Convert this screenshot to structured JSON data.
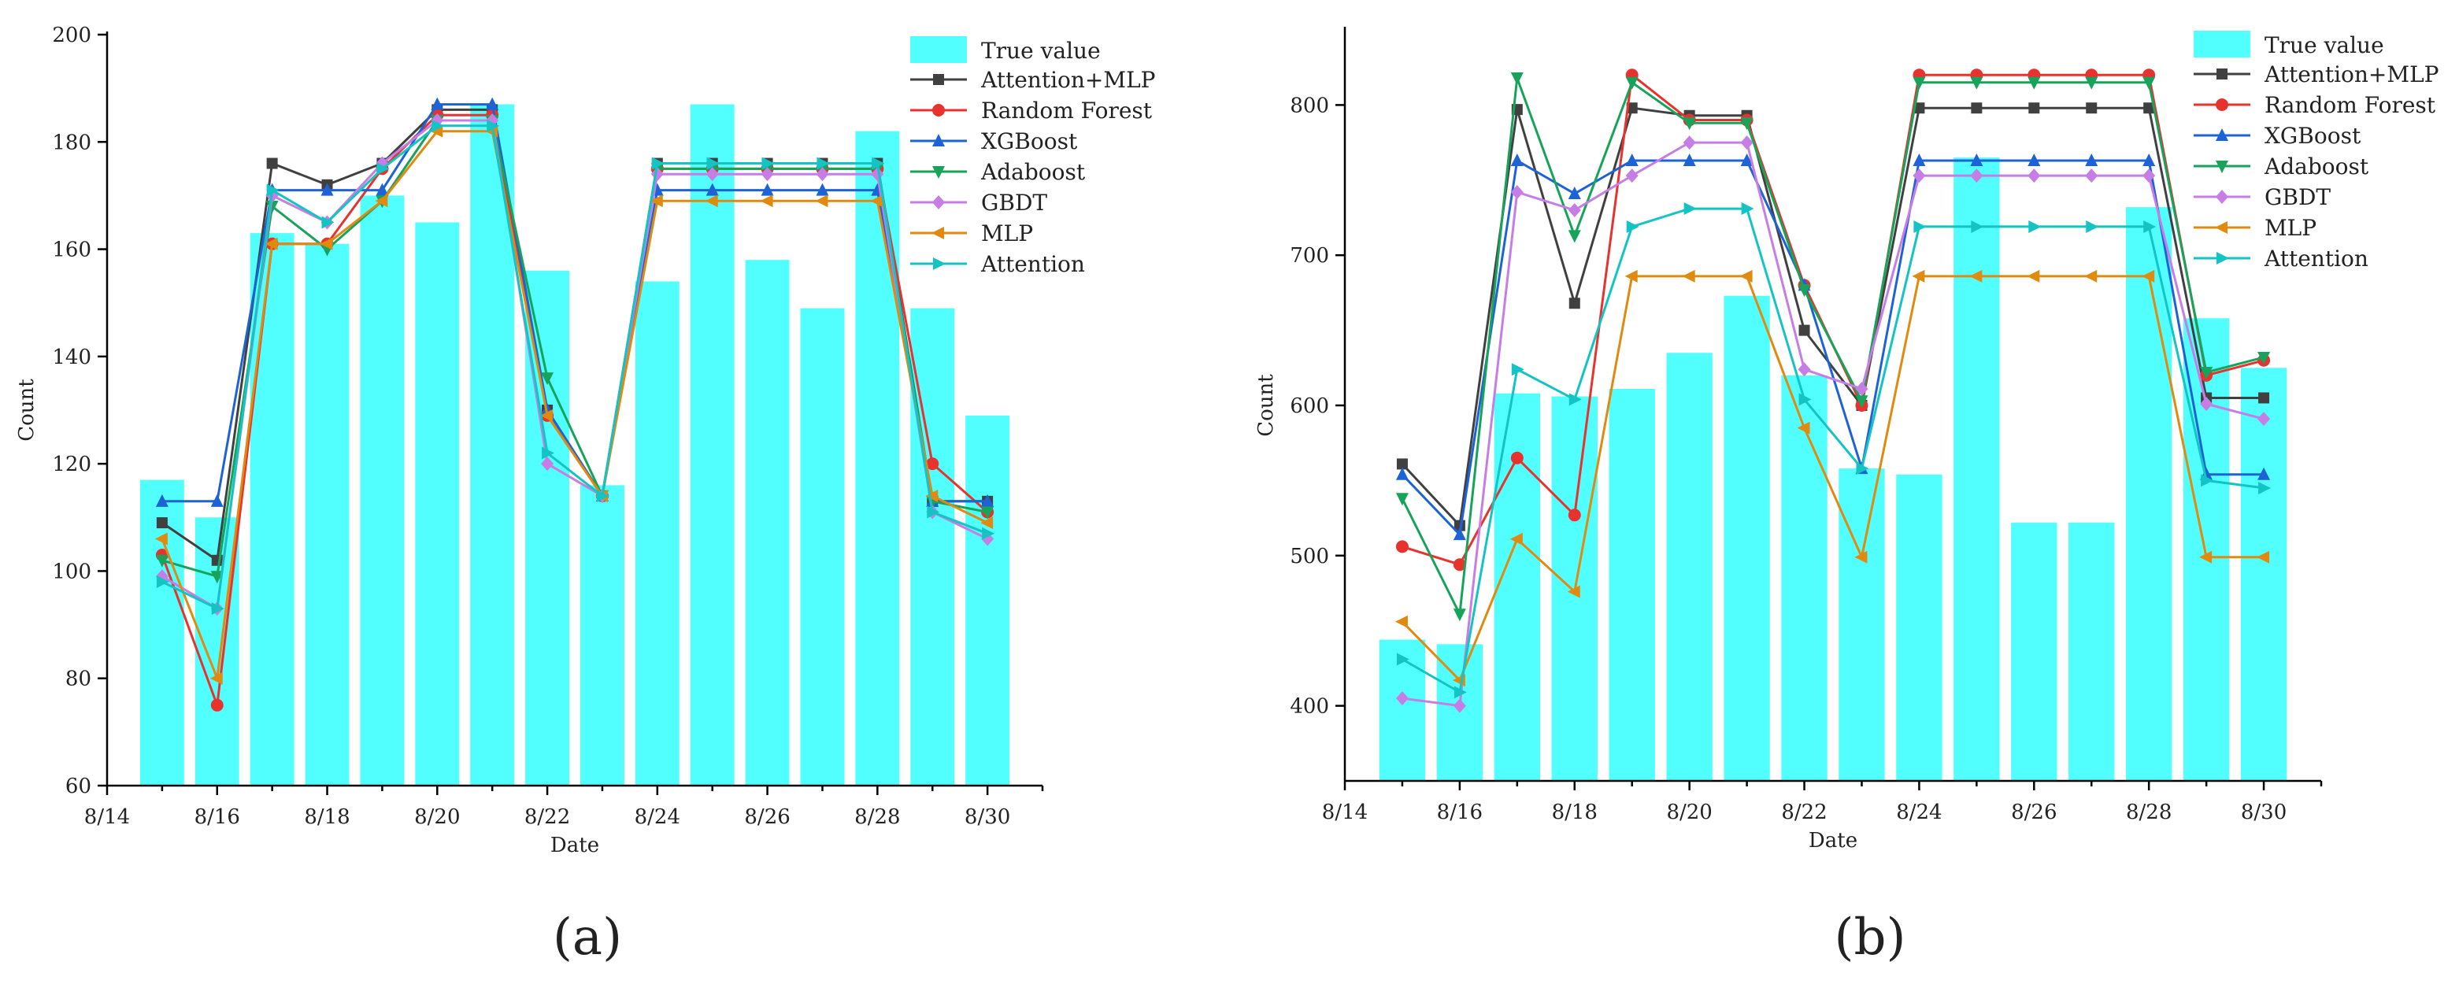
{
  "figure": {
    "panel_labels": [
      "(a)",
      "(b)"
    ]
  },
  "chart_data": [
    {
      "type": "bar+line",
      "panel": "(a)",
      "xlabel": "Date",
      "ylabel": "Count",
      "ylim": [
        60,
        200
      ],
      "xlim": [
        14,
        31
      ],
      "yticks": [
        60,
        80,
        100,
        120,
        140,
        160,
        180,
        200
      ],
      "xticks": [
        14,
        16,
        18,
        20,
        22,
        24,
        26,
        28,
        30
      ],
      "xtick_labels": [
        "8/14",
        "8/16",
        "8/18",
        "8/20",
        "8/22",
        "8/24",
        "8/26",
        "8/28",
        "8/30"
      ],
      "x": [
        15,
        16,
        17,
        18,
        19,
        20,
        21,
        22,
        23,
        24,
        25,
        26,
        27,
        28,
        29,
        30
      ],
      "legend_position": "top-right",
      "bars": {
        "name": "True value",
        "color": "#33ffff",
        "values": [
          117,
          110,
          163,
          161,
          170,
          165,
          187,
          156,
          116,
          154,
          187,
          158,
          149,
          182,
          149,
          129
        ]
      },
      "series": [
        {
          "name": "Attention+MLP",
          "color": "#404040",
          "marker": "square",
          "values": [
            109,
            102,
            176,
            172,
            176,
            186,
            186,
            130,
            114,
            176,
            176,
            176,
            176,
            176,
            113,
            113
          ]
        },
        {
          "name": "Random Forest",
          "color": "#e8322e",
          "marker": "circle",
          "values": [
            103,
            75,
            161,
            161,
            175,
            185,
            185,
            129,
            114,
            175,
            175,
            175,
            175,
            175,
            120,
            111
          ]
        },
        {
          "name": "XGBoost",
          "color": "#1e63d6",
          "marker": "triangle-up",
          "values": [
            113,
            113,
            171,
            171,
            171,
            187,
            187,
            130,
            114,
            171,
            171,
            171,
            171,
            171,
            113,
            113
          ]
        },
        {
          "name": "Adaboost",
          "color": "#17a35a",
          "marker": "triangle-down",
          "values": [
            102,
            99,
            168,
            160,
            169,
            184,
            184,
            136,
            114,
            175,
            175,
            175,
            175,
            175,
            113,
            111
          ]
        },
        {
          "name": "GBDT",
          "color": "#c67ee6",
          "marker": "diamond",
          "values": [
            99,
            93,
            170,
            165,
            176,
            184,
            184,
            120,
            114,
            174,
            174,
            174,
            174,
            174,
            111,
            106
          ]
        },
        {
          "name": "MLP",
          "color": "#e08a10",
          "marker": "triangle-left",
          "values": [
            106,
            80,
            161,
            161,
            169,
            182,
            182,
            129,
            114,
            169,
            169,
            169,
            169,
            169,
            114,
            109
          ]
        },
        {
          "name": "Attention",
          "color": "#14c4c4",
          "marker": "triangle-right",
          "values": [
            98,
            93,
            171,
            165,
            175,
            183,
            183,
            122,
            114,
            176,
            176,
            176,
            176,
            176,
            111,
            107
          ]
        }
      ]
    },
    {
      "type": "bar+line",
      "panel": "(b)",
      "xlabel": "Date",
      "ylabel": "Count",
      "ylim": [
        350,
        850
      ],
      "xlim": [
        14,
        31
      ],
      "yticks": [
        400,
        500,
        600,
        700,
        800
      ],
      "xticks": [
        14,
        16,
        18,
        20,
        22,
        24,
        26,
        28,
        30
      ],
      "xtick_labels": [
        "8/14",
        "8/16",
        "8/18",
        "8/20",
        "8/22",
        "8/24",
        "8/26",
        "8/28",
        "8/30"
      ],
      "x": [
        15,
        16,
        17,
        18,
        19,
        20,
        21,
        22,
        23,
        24,
        25,
        26,
        27,
        28,
        29,
        30
      ],
      "legend_position": "top-right",
      "bars": {
        "name": "True value",
        "color": "#33ffff",
        "values": [
          444,
          441,
          608,
          606,
          611,
          635,
          673,
          620,
          558,
          554,
          765,
          522,
          522,
          732,
          658,
          625
        ]
      },
      "series": [
        {
          "name": "Attention+MLP",
          "color": "#404040",
          "marker": "square",
          "values": [
            561,
            520,
            797,
            668,
            798,
            793,
            793,
            650,
            600,
            798,
            798,
            798,
            798,
            798,
            605,
            605
          ]
        },
        {
          "name": "Random Forest",
          "color": "#e8322e",
          "marker": "circle",
          "values": [
            506,
            494,
            565,
            527,
            820,
            790,
            790,
            680,
            600,
            820,
            820,
            820,
            820,
            820,
            620,
            630
          ]
        },
        {
          "name": "XGBoost",
          "color": "#1e63d6",
          "marker": "triangle-up",
          "values": [
            554,
            514,
            763,
            741,
            763,
            763,
            763,
            680,
            558,
            763,
            763,
            763,
            763,
            763,
            554,
            554
          ]
        },
        {
          "name": "Adaboost",
          "color": "#17a35a",
          "marker": "triangle-down",
          "values": [
            538,
            461,
            818,
            713,
            815,
            788,
            788,
            677,
            603,
            815,
            815,
            815,
            815,
            815,
            622,
            632
          ]
        },
        {
          "name": "GBDT",
          "color": "#c67ee6",
          "marker": "diamond",
          "values": [
            405,
            400,
            742,
            730,
            753,
            775,
            775,
            624,
            611,
            753,
            753,
            753,
            753,
            753,
            601,
            591
          ]
        },
        {
          "name": "MLP",
          "color": "#e08a10",
          "marker": "triangle-left",
          "values": [
            456,
            417,
            511,
            476,
            686,
            686,
            686,
            585,
            499,
            686,
            686,
            686,
            686,
            686,
            499,
            499
          ]
        },
        {
          "name": "Attention",
          "color": "#14c4c4",
          "marker": "triangle-right",
          "values": [
            431,
            409,
            624,
            604,
            719,
            731,
            731,
            604,
            558,
            719,
            719,
            719,
            719,
            719,
            550,
            545
          ]
        }
      ]
    }
  ]
}
